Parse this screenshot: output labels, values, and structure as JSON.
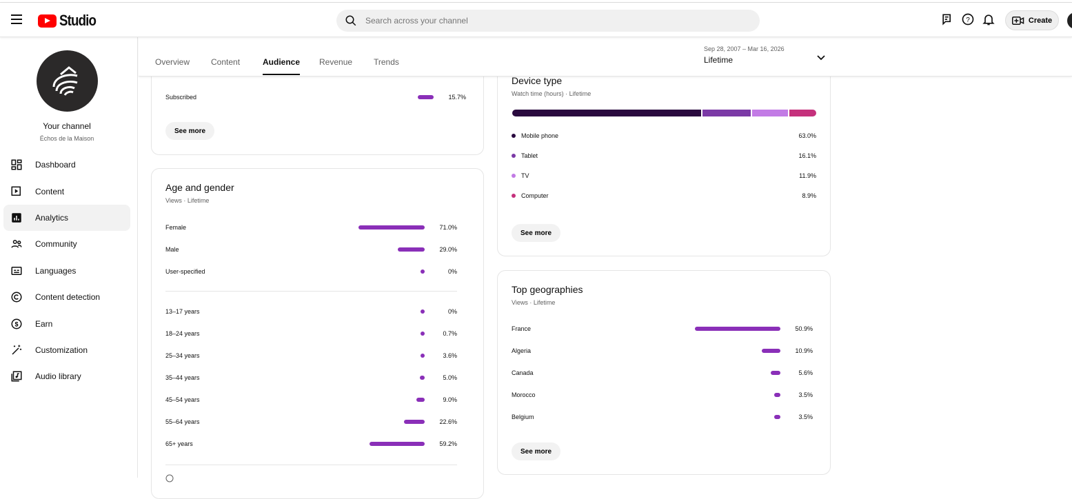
{
  "header": {
    "app_name": "Studio",
    "search_placeholder": "Search across your channel",
    "create_label": "Create"
  },
  "sidebar": {
    "channel_label": "Your channel",
    "channel_name": "Échos de la Maison",
    "items": [
      {
        "label": "Dashboard",
        "icon": "dashboard-icon"
      },
      {
        "label": "Content",
        "icon": "content-icon"
      },
      {
        "label": "Analytics",
        "icon": "analytics-icon",
        "active": true
      },
      {
        "label": "Community",
        "icon": "community-icon"
      },
      {
        "label": "Languages",
        "icon": "languages-icon"
      },
      {
        "label": "Content detection",
        "icon": "copyright-icon"
      },
      {
        "label": "Earn",
        "icon": "dollar-icon"
      },
      {
        "label": "Customization",
        "icon": "magic-wand-icon"
      },
      {
        "label": "Audio library",
        "icon": "audio-library-icon"
      }
    ]
  },
  "tabs": [
    "Overview",
    "Content",
    "Audience",
    "Revenue",
    "Trends"
  ],
  "date_range": {
    "dates": "Sep 28, 2007 – Mar 16, 2026",
    "label": "Lifetime"
  },
  "subscribed_card": {
    "row": {
      "label": "Subscribed",
      "value": 15.7,
      "display": "15.7%"
    },
    "see_more": "See more"
  },
  "age_gender": {
    "title": "Age and gender",
    "subtitle": "Views · Lifetime",
    "gender": [
      {
        "label": "Female",
        "value": 71.0,
        "display": "71.0%"
      },
      {
        "label": "Male",
        "value": 29.0,
        "display": "29.0%"
      },
      {
        "label": "User-specified",
        "value": 0,
        "display": "0%"
      }
    ],
    "age": [
      {
        "label": "13–17 years",
        "value": 0,
        "display": "0%"
      },
      {
        "label": "18–24 years",
        "value": 0.7,
        "display": "0.7%"
      },
      {
        "label": "25–34 years",
        "value": 3.6,
        "display": "3.6%"
      },
      {
        "label": "35–44 years",
        "value": 5.0,
        "display": "5.0%"
      },
      {
        "label": "45–54 years",
        "value": 9.0,
        "display": "9.0%"
      },
      {
        "label": "55–64 years",
        "value": 22.6,
        "display": "22.6%"
      },
      {
        "label": "65+ years",
        "value": 59.2,
        "display": "59.2%"
      }
    ]
  },
  "device": {
    "title": "Device type",
    "subtitle": "Watch time (hours) · Lifetime",
    "see_more": "See more",
    "items": [
      {
        "label": "Mobile phone",
        "value": 63.0,
        "display": "63.0%",
        "color": "#2a0a3f"
      },
      {
        "label": "Tablet",
        "value": 16.1,
        "display": "16.1%",
        "color": "#7b3aa6"
      },
      {
        "label": "TV",
        "value": 11.9,
        "display": "11.9%",
        "color": "#c27be5"
      },
      {
        "label": "Computer",
        "value": 8.9,
        "display": "8.9%",
        "color": "#c5317c"
      }
    ]
  },
  "geo": {
    "title": "Top geographies",
    "subtitle": "Views · Lifetime",
    "see_more": "See more",
    "items": [
      {
        "label": "France",
        "value": 50.9,
        "display": "50.9%"
      },
      {
        "label": "Algeria",
        "value": 10.9,
        "display": "10.9%"
      },
      {
        "label": "Canada",
        "value": 5.6,
        "display": "5.6%"
      },
      {
        "label": "Morocco",
        "value": 3.5,
        "display": "3.5%"
      },
      {
        "label": "Belgium",
        "value": 3.5,
        "display": "3.5%"
      }
    ]
  },
  "colors": {
    "bar": "#8a2fb8"
  }
}
